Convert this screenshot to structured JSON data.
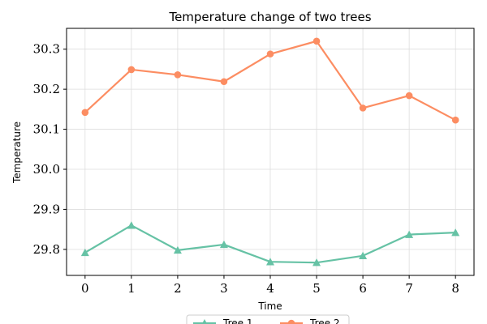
{
  "chart_data": {
    "type": "line",
    "title": "Temperature change of two trees",
    "xlabel": "Time",
    "ylabel": "Temperature",
    "x": [
      0,
      1,
      2,
      3,
      4,
      5,
      6,
      7,
      8
    ],
    "xlim": [
      -0.4,
      8.4
    ],
    "ylim": [
      29.735,
      30.352
    ],
    "xticks": [
      "0",
      "1",
      "2",
      "3",
      "4",
      "5",
      "6",
      "7",
      "8"
    ],
    "yticks": [
      "29.8",
      "29.9",
      "30.0",
      "30.1",
      "30.2",
      "30.3"
    ],
    "grid": true,
    "legend_position": "bottom-center",
    "series": [
      {
        "name": "Tree 1",
        "color": "#66c2a5",
        "marker": "triangle",
        "values": [
          29.792,
          29.86,
          29.798,
          29.812,
          29.769,
          29.767,
          29.784,
          29.837,
          29.842
        ]
      },
      {
        "name": "Tree 2",
        "color": "#fc8d62",
        "marker": "circle",
        "values": [
          30.142,
          30.249,
          30.236,
          30.219,
          30.288,
          30.32,
          30.153,
          30.184,
          30.123
        ]
      }
    ]
  }
}
